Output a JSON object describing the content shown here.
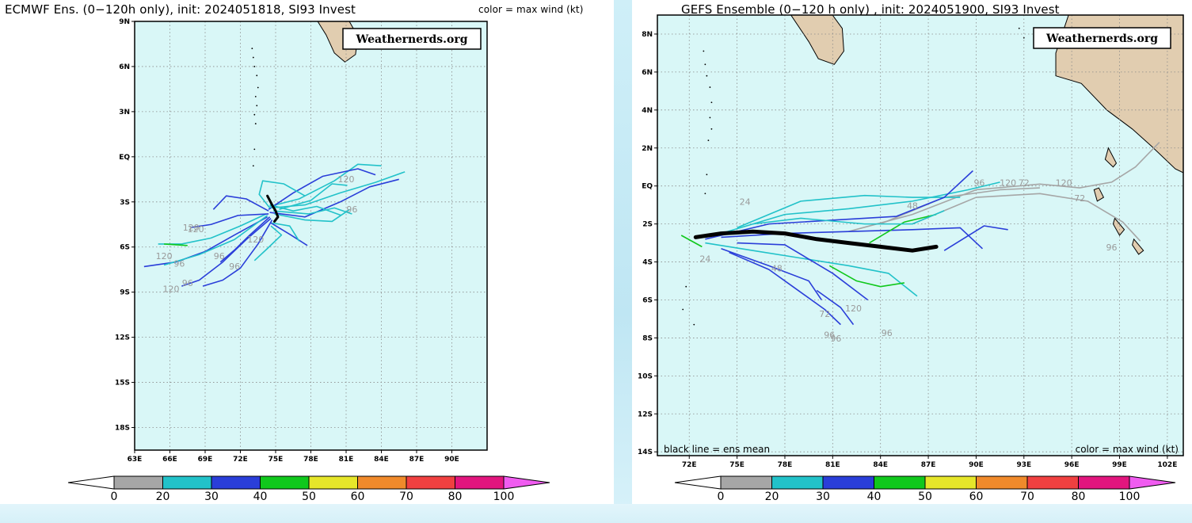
{
  "colors": {
    "ocean": "#d9f7f7",
    "land": "#e1cdb0",
    "grid": "#8a8a8a",
    "mean_track": "#000000",
    "wind_bins": [
      "#a6a6a6",
      "#22c2c9",
      "#2a3ed9",
      "#10c81c",
      "#e6e62a",
      "#f08a2b",
      "#f04040",
      "#e2157e",
      "#f05cf0"
    ]
  },
  "left": {
    "title": "ECMWF Ens. (0−120h only), init: 2024051818, SI93 Invest",
    "color_note": "color = max wind (kt)",
    "watermark": "Weathernerds.org",
    "colorbar_labels": [
      "0",
      "20",
      "30",
      "40",
      "50",
      "60",
      "70",
      "80",
      "100"
    ],
    "hour_labels": [
      "120",
      "120",
      "120",
      "96",
      "120",
      "96",
      "96",
      "96",
      "120",
      "96",
      "120"
    ],
    "chart_data": {
      "type": "line",
      "xlim": [
        63,
        93
      ],
      "ylim": [
        -19.5,
        9
      ],
      "x_ticks": [
        "63E",
        "66E",
        "69E",
        "72E",
        "75E",
        "78E",
        "81E",
        "84E",
        "87E",
        "90E"
      ],
      "y_ticks": [
        "9N",
        "6N",
        "3N",
        "EQ",
        "3S",
        "6S",
        "9S",
        "12S",
        "15S",
        "18S"
      ],
      "grid": true,
      "legend": "top-right",
      "series": [
        {
          "color_bin": 1,
          "points": [
            [
              74.5,
              -3.3
            ],
            [
              77,
              -2.8
            ],
            [
              80,
              -1.6
            ],
            [
              82,
              -0.5
            ],
            [
              84,
              -0.6
            ]
          ]
        },
        {
          "color_bin": 2,
          "points": [
            [
              74.4,
              -3.5
            ],
            [
              76.5,
              -2.4
            ],
            [
              79,
              -1.3
            ],
            [
              82,
              -0.8
            ],
            [
              83.5,
              -1.2
            ]
          ]
        },
        {
          "color_bin": 1,
          "points": [
            [
              74.6,
              -3.4
            ],
            [
              77.5,
              -3.2
            ],
            [
              80.5,
              -2.4
            ],
            [
              83.5,
              -1.7
            ],
            [
              86,
              -1.0
            ]
          ]
        },
        {
          "color_bin": 2,
          "points": [
            [
              74.5,
              -3.7
            ],
            [
              77.5,
              -4.0
            ],
            [
              80.5,
              -3.0
            ],
            [
              83,
              -2.0
            ],
            [
              85.5,
              -1.5
            ]
          ]
        },
        {
          "color_bin": 1,
          "points": [
            [
              74.8,
              -3.6
            ],
            [
              77.8,
              -3.8
            ],
            [
              80,
              -3.4
            ],
            [
              81.5,
              -3.8
            ]
          ]
        },
        {
          "color_bin": 1,
          "points": [
            [
              74.2,
              -3.8
            ],
            [
              72,
              -4.6
            ],
            [
              69.5,
              -5.4
            ],
            [
              67,
              -5.8
            ],
            [
              65,
              -5.8
            ]
          ]
        },
        {
          "color_bin": 3,
          "points": [
            [
              65.5,
              -5.8
            ],
            [
              67.5,
              -5.9
            ]
          ]
        },
        {
          "color_bin": 2,
          "points": [
            [
              74.3,
              -4.0
            ],
            [
              71.5,
              -5.2
            ],
            [
              69,
              -6.3
            ],
            [
              66.5,
              -7.0
            ],
            [
              63.8,
              -7.3
            ]
          ]
        },
        {
          "color_bin": 2,
          "points": [
            [
              74.6,
              -4.1
            ],
            [
              72.5,
              -5.5
            ],
            [
              70.5,
              -7.0
            ],
            [
              68.5,
              -8.2
            ],
            [
              67,
              -8.6
            ]
          ]
        },
        {
          "color_bin": 2,
          "points": [
            [
              74.7,
              -4.2
            ],
            [
              73.5,
              -5.8
            ],
            [
              72,
              -7.4
            ],
            [
              70.5,
              -8.2
            ],
            [
              68.8,
              -8.6
            ]
          ]
        },
        {
          "color_bin": 2,
          "points": [
            [
              74.5,
              -4.0
            ],
            [
              72.8,
              -5.2
            ],
            [
              71.5,
              -6.2
            ],
            [
              70.3,
              -7.0
            ]
          ]
        },
        {
          "color_bin": 1,
          "points": [
            [
              74.3,
              -3.9
            ],
            [
              71.5,
              -5.5
            ],
            [
              68.5,
              -6.5
            ],
            [
              65.5,
              -7.2
            ]
          ]
        },
        {
          "color_bin": 2,
          "points": [
            [
              74.4,
              -3.8
            ],
            [
              71.8,
              -3.9
            ],
            [
              69.5,
              -4.5
            ],
            [
              67.8,
              -4.7
            ]
          ]
        },
        {
          "color_bin": 2,
          "points": [
            [
              74.6,
              -4.4
            ],
            [
              76.3,
              -5.2
            ],
            [
              77.7,
              -5.9
            ]
          ]
        },
        {
          "color_bin": 2,
          "points": [
            [
              74.4,
              -3.6
            ],
            [
              72.5,
              -2.8
            ],
            [
              70.8,
              -2.6
            ],
            [
              69.7,
              -3.5
            ]
          ]
        },
        {
          "color_bin": 1,
          "points": [
            [
              74.9,
              -3.8
            ],
            [
              77.5,
              -4.2
            ],
            [
              79.8,
              -4.3
            ],
            [
              81.3,
              -3.5
            ]
          ]
        },
        {
          "color_bin": 1,
          "points": [
            [
              75.3,
              -3.5
            ],
            [
              78,
              -2.9
            ],
            [
              79.8,
              -1.8
            ],
            [
              81.1,
              -1.9
            ]
          ]
        },
        {
          "color_bin": 1,
          "points": [
            [
              74.5,
              -3.4
            ],
            [
              73.6,
              -2.5
            ],
            [
              73.9,
              -1.6
            ],
            [
              75.7,
              -1.8
            ],
            [
              77.5,
              -2.6
            ]
          ]
        },
        {
          "color_bin": 1,
          "points": [
            [
              74.6,
              -4.6
            ],
            [
              75.5,
              -5.2
            ],
            [
              74.3,
              -6.1
            ],
            [
              73.2,
              -6.9
            ]
          ]
        },
        {
          "color_bin": 1,
          "points": [
            [
              74.7,
              -4.4
            ],
            [
              76.2,
              -4.6
            ],
            [
              77,
              -5.6
            ]
          ]
        },
        {
          "color_bin": 1,
          "points": [
            [
              74.5,
              -3.2
            ],
            [
              76.5,
              -3.6
            ],
            [
              78.5,
              -3.3
            ],
            [
              80.6,
              -3.9
            ]
          ]
        }
      ],
      "mean_track": [
        [
          74.3,
          -2.6
        ],
        [
          74.7,
          -3.2
        ],
        [
          75.0,
          -3.6
        ],
        [
          75.2,
          -4.0
        ],
        [
          74.9,
          -4.3
        ]
      ]
    }
  },
  "right": {
    "title": "GEFS Ensemble (0−120 h only) , init: 2024051900, SI93 Invest",
    "watermark": "Weathernerds.org",
    "mean_note": "black line = ens mean",
    "color_note": "color = max wind (kt)",
    "colorbar_labels": [
      "0",
      "20",
      "30",
      "40",
      "50",
      "60",
      "70",
      "80",
      "100"
    ],
    "hour_labels": [
      "24",
      "24",
      "48",
      "48",
      "72",
      "96",
      "120",
      "72",
      "96",
      "72",
      "120",
      "120",
      "96",
      "96",
      "96"
    ],
    "chart_data": {
      "type": "line",
      "xlim": [
        70,
        103
      ],
      "ylim": [
        -14.2,
        9
      ],
      "x_ticks": [
        "72E",
        "75E",
        "78E",
        "81E",
        "84E",
        "87E",
        "90E",
        "93E",
        "96E",
        "99E",
        "102E"
      ],
      "y_ticks": [
        "8N",
        "6N",
        "4N",
        "2N",
        "EQ",
        "2S",
        "4S",
        "6S",
        "8S",
        "10S",
        "12S",
        "14S"
      ],
      "grid": true,
      "legend": "top-right",
      "series": [
        {
          "color_bin": 0,
          "points": [
            [
              82,
              -2.4
            ],
            [
              86,
              -1.5
            ],
            [
              90,
              -0.2
            ],
            [
              94,
              0.1
            ],
            [
              96.5,
              -0.1
            ],
            [
              98.5,
              0.2
            ],
            [
              100,
              1.0
            ],
            [
              101.5,
              2.3
            ]
          ]
        },
        {
          "color_bin": 0,
          "points": [
            [
              86,
              -2.0
            ],
            [
              90,
              -0.6
            ],
            [
              94,
              -0.4
            ],
            [
              97,
              -0.8
            ],
            [
              99.2,
              -1.9
            ],
            [
              100.3,
              -2.9
            ]
          ]
        },
        {
          "color_bin": 0,
          "points": [
            [
              84,
              -2.0
            ],
            [
              88,
              -0.6
            ],
            [
              91.5,
              -0.2
            ],
            [
              94,
              -0.1
            ]
          ]
        },
        {
          "color_bin": 1,
          "points": [
            [
              75,
              -2.2
            ],
            [
              79,
              -0.8
            ],
            [
              83,
              -0.5
            ],
            [
              86,
              -0.6
            ],
            [
              89,
              -0.6
            ]
          ]
        },
        {
          "color_bin": 1,
          "points": [
            [
              74,
              -2.5
            ],
            [
              78,
              -1.5
            ],
            [
              82,
              -1.2
            ],
            [
              86,
              -0.8
            ],
            [
              89.5,
              -0.2
            ],
            [
              91.5,
              0.2
            ]
          ]
        },
        {
          "color_bin": 2,
          "points": [
            [
              73,
              -2.8
            ],
            [
              77,
              -2.0
            ],
            [
              81,
              -1.8
            ],
            [
              85,
              -1.6
            ],
            [
              88,
              -0.6
            ],
            [
              89.8,
              0.8
            ]
          ]
        },
        {
          "color_bin": 2,
          "points": [
            [
              74,
              -2.7
            ],
            [
              78,
              -2.5
            ],
            [
              82,
              -2.4
            ],
            [
              86,
              -2.3
            ],
            [
              89,
              -2.2
            ],
            [
              90.4,
              -3.3
            ]
          ]
        },
        {
          "color_bin": 2,
          "points": [
            [
              88,
              -3.4
            ],
            [
              90.5,
              -2.1
            ],
            [
              92,
              -2.3
            ]
          ]
        },
        {
          "color_bin": 1,
          "points": [
            [
              73,
              -3.0
            ],
            [
              76,
              -3.4
            ],
            [
              79,
              -3.8
            ],
            [
              82,
              -4.2
            ],
            [
              84.5,
              -4.6
            ],
            [
              86.3,
              -5.8
            ]
          ]
        },
        {
          "color_bin": 2,
          "points": [
            [
              74,
              -3.3
            ],
            [
              77,
              -4.2
            ],
            [
              79.5,
              -5.0
            ],
            [
              80.3,
              -6.0
            ]
          ]
        },
        {
          "color_bin": 2,
          "points": [
            [
              74.5,
              -3.5
            ],
            [
              77,
              -4.4
            ],
            [
              78.5,
              -5.3
            ],
            [
              80.5,
              -6.5
            ],
            [
              81.5,
              -7.3
            ]
          ]
        },
        {
          "color_bin": 3,
          "points": [
            [
              80.8,
              -4.2
            ],
            [
              82.5,
              -5.0
            ],
            [
              84,
              -5.3
            ],
            [
              85.5,
              -5.1
            ]
          ]
        },
        {
          "color_bin": 3,
          "points": [
            [
              83.3,
              -3.0
            ],
            [
              85.5,
              -1.9
            ],
            [
              87.5,
              -1.5
            ]
          ]
        },
        {
          "color_bin": 3,
          "points": [
            [
              71.5,
              -2.6
            ],
            [
              72.8,
              -3.2
            ]
          ]
        },
        {
          "color_bin": 1,
          "points": [
            [
              76,
              -2.0
            ],
            [
              79,
              -1.7
            ],
            [
              83,
              -2.0
            ],
            [
              86,
              -2.0
            ],
            [
              88,
              -1.3
            ]
          ]
        },
        {
          "color_bin": 2,
          "points": [
            [
              75,
              -3.0
            ],
            [
              78,
              -3.1
            ],
            [
              81,
              -4.6
            ],
            [
              83.2,
              -6.0
            ]
          ]
        },
        {
          "color_bin": 2,
          "points": [
            [
              80,
              -5.5
            ],
            [
              81.5,
              -6.4
            ],
            [
              82.3,
              -7.3
            ]
          ]
        }
      ],
      "mean_track": [
        [
          72.4,
          -2.7
        ],
        [
          74,
          -2.5
        ],
        [
          76,
          -2.4
        ],
        [
          78,
          -2.5
        ],
        [
          80,
          -2.8
        ],
        [
          82,
          -3.0
        ],
        [
          84,
          -3.2
        ],
        [
          86,
          -3.4
        ],
        [
          87.5,
          -3.2
        ]
      ]
    }
  }
}
